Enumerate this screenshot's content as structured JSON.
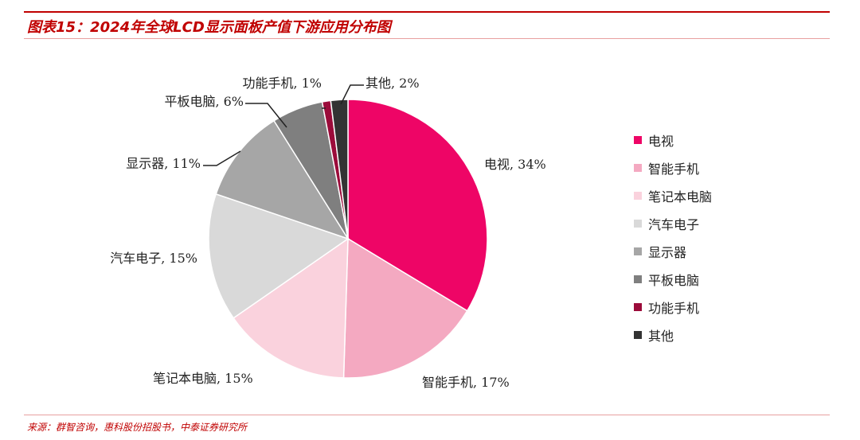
{
  "title": "图表15：2024年全球LCD显示面板产值下游应用分布图",
  "source": "来源：群智咨询，惠科股份招股书，中泰证券研究所",
  "chart_data": {
    "type": "pie",
    "title": "图表15：2024年全球LCD显示面板产值下游应用分布图",
    "unit": "%",
    "legend_position": "right",
    "start": "12 o'clock, clockwise",
    "slices": [
      {
        "name": "电视",
        "value": 34,
        "label": "电视, 34%",
        "color": "#ee0566"
      },
      {
        "name": "智能手机",
        "value": 17,
        "label": "智能手机, 17%",
        "color": "#f4a9c1"
      },
      {
        "name": "笔记本电脑",
        "value": 15,
        "label": "笔记本电脑, 15%",
        "color": "#fad2dd"
      },
      {
        "name": "汽车电子",
        "value": 15,
        "label": "汽车电子, 15%",
        "color": "#d9d9d9"
      },
      {
        "name": "显示器",
        "value": 11,
        "label": "显示器, 11%",
        "color": "#a6a6a6"
      },
      {
        "name": "平板电脑",
        "value": 6,
        "label": "平板电脑, 6%",
        "color": "#7f7f7f"
      },
      {
        "name": "功能手机",
        "value": 1,
        "label": "功能手机, 1%",
        "color": "#9b0b3a"
      },
      {
        "name": "其他",
        "value": 2,
        "label": "其他, 2%",
        "color": "#333333"
      }
    ]
  }
}
